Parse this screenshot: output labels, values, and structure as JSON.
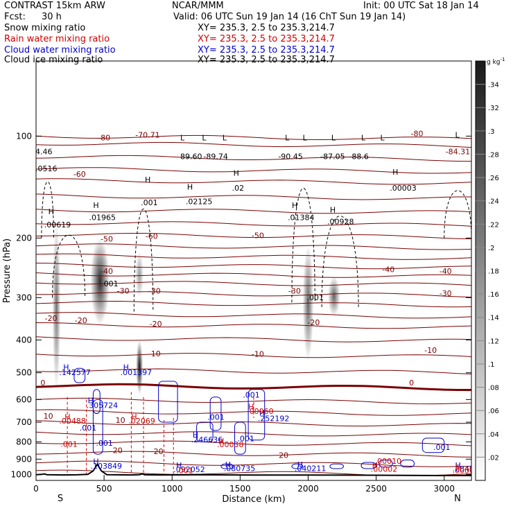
{
  "header": {
    "model": "CONTRAST 15km ARW",
    "center": "NCAR/MMM",
    "init": "Init: 00 UTC Sat 18 Jan 14",
    "fcst_label": "Fcst:",
    "fcst_value": "30 h",
    "valid": "Valid: 06 UTC Sun 19 Jan 14 (16 ChT Sun 19 Jan 14)"
  },
  "legend": [
    {
      "label": "Snow mixing ratio",
      "xy": "XY= 235.3,   2.5 to 235.3,214.7",
      "color": "#000000"
    },
    {
      "label": "Rain water mixing ratio",
      "xy": "XY= 235.3,   2.5 to 235.3,214.7",
      "color": "#d00000"
    },
    {
      "label": "Cloud water mixing ratio",
      "xy": "XY= 235.3,   2.5 to 235.3,214.7",
      "color": "#0000c8"
    },
    {
      "label": "Cloud ice mixing ratio",
      "xy": "XY= 235.3,   2.5 to 235.3,214.7",
      "color": "#000000"
    }
  ],
  "chart_data": {
    "type": "heatmap",
    "xlabel": "Distance (km)",
    "ylabel": "Pressure (hPa)",
    "xlim": [
      0,
      3200
    ],
    "ylim": [
      1040,
      60
    ],
    "y_scale": "log",
    "x_ticks": [
      0,
      500,
      1000,
      1500,
      2000,
      2500,
      3000
    ],
    "y_ticks": [
      100,
      200,
      300,
      400,
      500,
      600,
      700,
      800,
      900,
      1000
    ],
    "end_labels": {
      "left": "S",
      "right": "N"
    },
    "colorbar": {
      "unit": "g kg",
      "unit_sup": "-1",
      "ticks": [
        ".02",
        ".04",
        ".06",
        ".08",
        ".1",
        ".12",
        ".14",
        ".16",
        ".18",
        ".2",
        ".22",
        ".24",
        ".26",
        ".28",
        ".3",
        ".32",
        ".34"
      ],
      "max": 0.36
    },
    "temperature_labels": [
      {
        "text": "-80",
        "x": 500,
        "p": 103
      },
      {
        "text": "-70.71",
        "x": 820,
        "p": 101
      },
      {
        "text": "-80",
        "x": 2800,
        "p": 100
      },
      {
        "text": "-84.31",
        "x": 3100,
        "p": 113
      },
      {
        "text": "-60",
        "x": 320,
        "p": 132
      },
      {
        "text": "-60",
        "x": 850,
        "p": 201
      },
      {
        "text": "-50",
        "x": 520,
        "p": 205
      },
      {
        "text": "-50",
        "x": 1630,
        "p": 200
      },
      {
        "text": "-40",
        "x": 520,
        "p": 255
      },
      {
        "text": "-40",
        "x": 2590,
        "p": 252
      },
      {
        "text": "-40",
        "x": 3010,
        "p": 255
      },
      {
        "text": "-30",
        "x": 640,
        "p": 292
      },
      {
        "text": "-30",
        "x": 870,
        "p": 292
      },
      {
        "text": "-30",
        "x": 1900,
        "p": 292
      },
      {
        "text": "-30",
        "x": 3010,
        "p": 297
      },
      {
        "text": "-20",
        "x": 110,
        "p": 352
      },
      {
        "text": "-20",
        "x": 330,
        "p": 357
      },
      {
        "text": "-20",
        "x": 880,
        "p": 365
      },
      {
        "text": "-20",
        "x": 2040,
        "p": 362
      },
      {
        "text": "-10",
        "x": 870,
        "p": 447
      },
      {
        "text": "-10",
        "x": 1630,
        "p": 448
      },
      {
        "text": "-10",
        "x": 2900,
        "p": 437
      },
      {
        "text": "0",
        "x": 50,
        "p": 545
      },
      {
        "text": "0",
        "x": 2760,
        "p": 545
      },
      {
        "text": "10",
        "x": 90,
        "p": 684
      },
      {
        "text": "10",
        "x": 620,
        "p": 704
      },
      {
        "text": "20",
        "x": 600,
        "p": 863
      },
      {
        "text": "20",
        "x": 900,
        "p": 870
      },
      {
        "text": "20",
        "x": 1820,
        "p": 893
      }
    ],
    "snow_ice_labels": [
      {
        "text": "4.46",
        "x": -5,
        "p": 113
      },
      {
        "text": ".0516",
        "x": -5,
        "p": 127
      },
      {
        "text": "H",
        "x": 90,
        "p": 170
      },
      {
        "text": ".00619",
        "x": 60,
        "p": 186
      },
      {
        "text": "H",
        "x": 420,
        "p": 163
      },
      {
        "text": ".01965",
        "x": 390,
        "p": 177
      },
      {
        "text": ".001",
        "x": 480,
        "p": 278
      },
      {
        "text": "H",
        "x": 800,
        "p": 137
      },
      {
        "text": ".001",
        "x": 770,
        "p": 160
      },
      {
        "text": "L",
        "x": 1060,
        "p": 103
      },
      {
        "text": "89.60",
        "x": 1060,
        "p": 117
      },
      {
        "text": "L",
        "x": 1220,
        "p": 103
      },
      {
        "text": "-89.74",
        "x": 1230,
        "p": 117
      },
      {
        "text": "L",
        "x": 1370,
        "p": 103
      },
      {
        "text": "L",
        "x": 1830,
        "p": 103
      },
      {
        "text": "-90.45",
        "x": 1780,
        "p": 117
      },
      {
        "text": "L",
        "x": 1960,
        "p": 103
      },
      {
        "text": "L",
        "x": 2170,
        "p": 103
      },
      {
        "text": "-87.05",
        "x": 2090,
        "p": 117
      },
      {
        "text": "L",
        "x": 2390,
        "p": 103
      },
      {
        "text": "-88.6",
        "x": 2300,
        "p": 117
      },
      {
        "text": "L",
        "x": 2530,
        "p": 103
      },
      {
        "text": "L",
        "x": 3080,
        "p": 101
      },
      {
        "text": "H",
        "x": 1110,
        "p": 144
      },
      {
        "text": ".02125",
        "x": 1100,
        "p": 159
      },
      {
        "text": "H",
        "x": 1450,
        "p": 131
      },
      {
        "text": ".02",
        "x": 1440,
        "p": 145
      },
      {
        "text": "H",
        "x": 1880,
        "p": 163
      },
      {
        "text": ".01384",
        "x": 1850,
        "p": 177
      },
      {
        "text": "H",
        "x": 2160,
        "p": 168
      },
      {
        "text": ".00928",
        "x": 2140,
        "p": 182
      },
      {
        "text": "H",
        "x": 2620,
        "p": 130
      },
      {
        "text": ".00003",
        "x": 2600,
        "p": 145
      },
      {
        "text": ".001",
        "x": 1990,
        "p": 305
      }
    ],
    "cloud_water_labels": [
      {
        "text": "H",
        "x": 200,
        "p": 490
      },
      {
        "text": ".142577",
        "x": 170,
        "p": 508
      },
      {
        "text": "H",
        "x": 640,
        "p": 490
      },
      {
        "text": ".001397",
        "x": 620,
        "p": 508
      },
      {
        "text": "H",
        "x": 380,
        "p": 615
      },
      {
        "text": ".305724",
        "x": 370,
        "p": 636
      },
      {
        "text": ".001",
        "x": 1520,
        "p": 592
      },
      {
        "text": ".001",
        "x": 1260,
        "p": 689
      },
      {
        "text": "H",
        "x": 1640,
        "p": 670
      },
      {
        "text": ".252192",
        "x": 1630,
        "p": 695
      },
      {
        "text": ".001",
        "x": 320,
        "p": 740
      },
      {
        "text": "H",
        "x": 1150,
        "p": 777
      },
      {
        "text": ".246636",
        "x": 1140,
        "p": 802
      },
      {
        "text": ".001",
        "x": 1480,
        "p": 797
      },
      {
        "text": ".001",
        "x": 440,
        "p": 822
      },
      {
        "text": ".001",
        "x": 2920,
        "p": 845
      },
      {
        "text": "H",
        "x": 420,
        "p": 932
      },
      {
        "text": ".103849",
        "x": 400,
        "p": 960
      },
      {
        "text": "H",
        "x": 1030,
        "p": 955
      },
      {
        "text": ".092052",
        "x": 1010,
        "p": 982
      },
      {
        "text": "H",
        "x": 1390,
        "p": 950
      },
      {
        "text": ".080735",
        "x": 1380,
        "p": 977
      },
      {
        "text": "H",
        "x": 1920,
        "p": 950
      },
      {
        "text": ".040211",
        "x": 1900,
        "p": 977
      },
      {
        "text": "H",
        "x": 3080,
        "p": 955
      },
      {
        "text": ".2840",
        "x": 3060,
        "p": 978
      }
    ],
    "rain_labels": [
      {
        "text": "H",
        "x": 210,
        "p": 687
      },
      {
        "text": ".00488",
        "x": 170,
        "p": 706
      },
      {
        "text": "H",
        "x": 700,
        "p": 687
      },
      {
        "text": ".02069",
        "x": 680,
        "p": 706
      },
      {
        "text": "H",
        "x": 1560,
        "p": 642
      },
      {
        "text": ".00060",
        "x": 1550,
        "p": 662
      },
      {
        "text": ".001",
        "x": 180,
        "p": 827
      },
      {
        "text": "H",
        "x": 1340,
        "p": 810
      },
      {
        "text": ".00038",
        "x": 1330,
        "p": 830
      },
      {
        "text": "H",
        "x": 2470,
        "p": 955
      },
      {
        "text": ".00002",
        "x": 2460,
        "p": 980
      },
      {
        "text": ".001",
        "x": 1030,
        "p": 990
      },
      {
        "text": "H",
        "x": 3080,
        "p": 966
      },
      {
        "text": ".0000",
        "x": 3060,
        "p": 990
      },
      {
        "text": ".00010",
        "x": 2490,
        "p": 928
      }
    ],
    "terrain": [
      [
        0,
        1000
      ],
      [
        40,
        998
      ],
      [
        60,
        995
      ],
      [
        80,
        1000
      ],
      [
        200,
        1002
      ],
      [
        300,
        1001
      ],
      [
        380,
        998
      ],
      [
        420,
        975
      ],
      [
        450,
        932
      ],
      [
        480,
        975
      ],
      [
        520,
        1000
      ],
      [
        700,
        1002
      ],
      [
        760,
        1000
      ],
      [
        780,
        995
      ],
      [
        800,
        1001
      ],
      [
        900,
        1002
      ],
      [
        1200,
        1001
      ],
      [
        1600,
        1003
      ],
      [
        2000,
        1003
      ],
      [
        2500,
        1004
      ],
      [
        3000,
        1006
      ],
      [
        3200,
        1006
      ]
    ],
    "snow_ice_shades": [
      {
        "x": 150,
        "p_top": 180,
        "p_bot": 560,
        "w": 60,
        "v": 0.2
      },
      {
        "x": 470,
        "p_top": 200,
        "p_bot": 360,
        "w": 140,
        "v": 0.3
      },
      {
        "x": 760,
        "p_top": 400,
        "p_bot": 580,
        "w": 50,
        "v": 0.34
      },
      {
        "x": 760,
        "p_top": 220,
        "p_bot": 300,
        "w": 60,
        "v": 0.14
      },
      {
        "x": 2000,
        "p_top": 210,
        "p_bot": 460,
        "w": 80,
        "v": 0.22
      },
      {
        "x": 2190,
        "p_top": 260,
        "p_bot": 340,
        "w": 90,
        "v": 0.22
      }
    ]
  }
}
